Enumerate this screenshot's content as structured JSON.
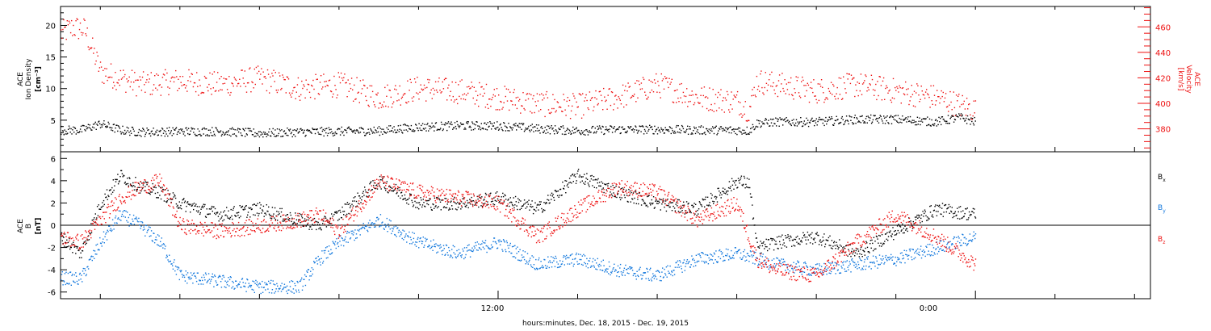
{
  "xlabel": "hours:minutes, Dec. 18, 2015 - Dec. 19, 2015",
  "x_ticks": [
    {
      "hour": 12,
      "label": "12:00"
    },
    {
      "hour": 24,
      "label": "0:00"
    }
  ],
  "colors": {
    "black": "#000000",
    "red": "#ee1111",
    "blue": "#1177dd"
  },
  "chart_data": [
    {
      "type": "scatter",
      "panel": "plasma",
      "ylabel_left": [
        "ACE",
        "Ion Density",
        "[cm⁻³]"
      ],
      "ylabel_right": [
        "ACE",
        "Velocity",
        "[km/s]"
      ],
      "xlim_hours": [
        1.0,
        28.4
      ],
      "ylim_left": [
        0,
        23
      ],
      "ylim_right": [
        362,
        476
      ],
      "left_ticks": [
        5,
        10,
        15,
        20
      ],
      "right_ticks": [
        380,
        400,
        420,
        440,
        460
      ],
      "series": [
        {
          "axis": "left",
          "color": "#000000",
          "points_hours": [
            1.0,
            1.5,
            2.0,
            2.5,
            3.0,
            4.0,
            5.0,
            6.0,
            7.0,
            8.0,
            9.0,
            10.0,
            11.0,
            12.0,
            13.0,
            14.0,
            15.0,
            16.0,
            17.0,
            18.0,
            18.3,
            18.5,
            19.0,
            20.0,
            21.0,
            22.0,
            23.0,
            23.6,
            24.0
          ],
          "values": [
            3.5,
            3.5,
            4.5,
            3.5,
            3.2,
            3.3,
            3.3,
            3.0,
            3.2,
            3.3,
            3.4,
            4.0,
            4.2,
            4.2,
            3.7,
            3.4,
            3.6,
            3.6,
            3.5,
            3.5,
            3.4,
            4.6,
            4.8,
            4.8,
            5.2,
            5.2,
            4.8,
            5.5,
            4.8
          ]
        },
        {
          "axis": "right",
          "color": "#ee1111",
          "points_hours": [
            1.0,
            1.3,
            1.6,
            2.0,
            3.0,
            4.0,
            5.0,
            6.0,
            7.0,
            8.0,
            9.0,
            10.0,
            11.0,
            12.0,
            13.0,
            14.0,
            15.0,
            16.0,
            17.0,
            18.0,
            18.3,
            18.5,
            19.0,
            20.0,
            21.0,
            22.0,
            23.0,
            24.0
          ],
          "values": [
            455,
            460,
            458,
            425,
            415,
            418,
            415,
            420,
            412,
            415,
            405,
            412,
            410,
            405,
            400,
            398,
            405,
            415,
            405,
            402,
            395,
            418,
            415,
            410,
            415,
            410,
            405,
            395
          ]
        }
      ]
    },
    {
      "type": "scatter",
      "panel": "magnetic",
      "ylabel_left": [
        "ACE",
        "B",
        "[nT]"
      ],
      "xlim_hours": [
        1.0,
        28.4
      ],
      "ylim": [
        -6.6,
        6.6
      ],
      "ticks": [
        -6,
        -4,
        -2,
        0,
        2,
        4,
        6
      ],
      "zero_line": true,
      "legend": {
        "placement": "right",
        "entries": [
          {
            "name": "B",
            "sub": "x",
            "color": "#000000"
          },
          {
            "name": "B",
            "sub": "y",
            "color": "#1177dd"
          },
          {
            "name": "B",
            "sub": "z",
            "color": "#ee1111"
          }
        ]
      },
      "series": [
        {
          "name": "Bx",
          "color": "#000000",
          "points_hours": [
            1.0,
            1.5,
            2.0,
            2.5,
            3.0,
            3.5,
            4.0,
            5.0,
            6.0,
            7.0,
            7.5,
            8.0,
            9.0,
            10.0,
            11.0,
            12.0,
            13.0,
            14.0,
            15.0,
            16.0,
            17.0,
            18.0,
            18.3,
            18.5,
            19.0,
            20.0,
            21.0,
            22.0,
            23.0,
            24.0
          ],
          "values": [
            -1.0,
            -2.5,
            2.0,
            4.5,
            3.5,
            3.0,
            2.0,
            1.0,
            1.5,
            0.5,
            0.0,
            1.0,
            4.0,
            2.0,
            2.0,
            2.5,
            1.5,
            4.5,
            3.0,
            2.0,
            1.5,
            4.0,
            3.8,
            -2.0,
            -1.5,
            -1.0,
            -2.5,
            -0.5,
            1.5,
            1.0
          ]
        },
        {
          "name": "By",
          "color": "#1177dd",
          "points_hours": [
            1.0,
            1.5,
            2.0,
            2.5,
            3.0,
            3.5,
            4.0,
            5.0,
            6.0,
            7.0,
            7.5,
            8.0,
            9.0,
            10.0,
            11.0,
            12.0,
            13.0,
            14.0,
            15.0,
            16.0,
            17.0,
            18.0,
            18.5,
            19.0,
            20.0,
            21.0,
            22.0,
            23.0,
            24.0
          ],
          "values": [
            -4.7,
            -4.8,
            -1.5,
            1.0,
            0.0,
            -1.5,
            -4.5,
            -5.0,
            -5.5,
            -5.5,
            -3.0,
            -1.5,
            0.5,
            -1.5,
            -2.5,
            -1.5,
            -3.5,
            -3.0,
            -4.0,
            -4.5,
            -3.0,
            -2.5,
            -3.0,
            -3.5,
            -4.0,
            -3.5,
            -3.0,
            -2.0,
            -1.0
          ]
        },
        {
          "name": "Bz",
          "color": "#ee1111",
          "points_hours": [
            1.0,
            1.5,
            2.0,
            2.5,
            3.0,
            3.5,
            4.0,
            5.0,
            6.0,
            7.0,
            7.5,
            8.0,
            9.0,
            10.0,
            11.0,
            12.0,
            13.0,
            14.0,
            15.0,
            16.0,
            17.0,
            18.0,
            18.5,
            19.0,
            20.0,
            21.0,
            22.0,
            23.0,
            24.0
          ],
          "values": [
            -1.0,
            -1.5,
            0.5,
            2.5,
            3.5,
            4.0,
            0.0,
            -0.5,
            0.0,
            0.5,
            1.0,
            -0.5,
            4.0,
            3.0,
            2.5,
            2.0,
            -1.0,
            1.5,
            3.5,
            3.0,
            0.5,
            2.0,
            -3.0,
            -4.0,
            -4.5,
            -1.5,
            1.0,
            -1.0,
            -3.5
          ]
        }
      ]
    }
  ]
}
